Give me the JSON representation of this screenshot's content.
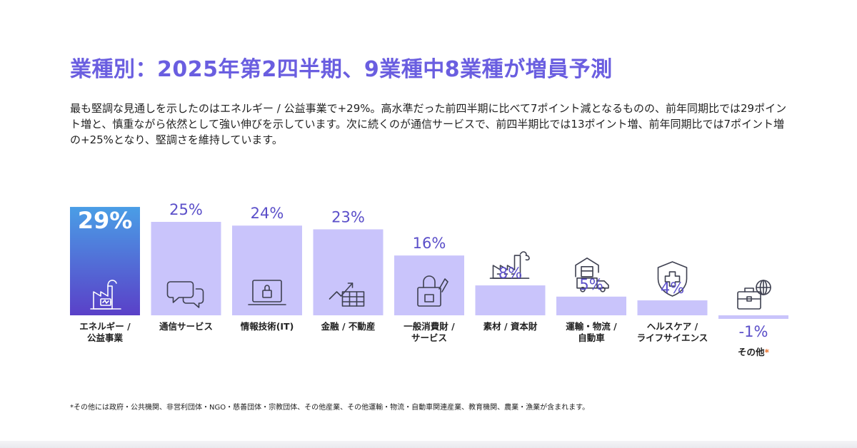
{
  "title": "業種別：2025年第2四半期、9業種中8業種が増員予測",
  "intro": "最も堅調な見通しを示したのはエネルギー / 公益事業で+29%。高水準だった前四半期に比べて7ポイント減となるものの、前年同期比では29ポイント増と、慎重ながら依然として強い伸びを示しています。次に続くのが通信サービスで、前四半期比では13ポイント増、前年同期比では7ポイント増の+25%となり、堅調さを維持しています。",
  "footnote": "*その他には政府・公共機関、非営利団体・NGO・慈善団体・宗教団体、その他産業、その他運輸・物流・自動車関連産業、教育機関、農業・漁業が含まれます。",
  "chart_data": {
    "type": "bar",
    "unit": "%",
    "categories": [
      "エネルギー / 公益事業",
      "通信サービス",
      "情報技術(IT)",
      "金融 / 不動産",
      "一般消費財 / サービス",
      "素材 / 資本財",
      "運輸・物流 / 自動車",
      "ヘルスケア / ライフサイエンス",
      "その他*"
    ],
    "category_lines": [
      [
        "エネルギー /",
        "公益事業"
      ],
      [
        "通信サービス"
      ],
      [
        "情報技術(IT)"
      ],
      [
        "金融 / 不動産"
      ],
      [
        "一般消費財 /",
        "サービス"
      ],
      [
        "素材 / 資本財"
      ],
      [
        "運輸・物流 /",
        "自動車"
      ],
      [
        "ヘルスケア /",
        "ライフサイエンス"
      ],
      [
        "その他*"
      ]
    ],
    "values": [
      29,
      25,
      24,
      23,
      16,
      8,
      5,
      4,
      -1
    ],
    "value_labels": [
      "29%",
      "25%",
      "24%",
      "23%",
      "16%",
      "8%",
      "5%",
      "4%",
      "-1%"
    ],
    "icons": [
      "factory-battery-icon",
      "chat-bubbles-icon",
      "laptop-lock-icon",
      "growth-chart-icon",
      "shopping-bag-icon",
      "factory-icon",
      "truck-icon",
      "medical-shield-icon",
      "briefcase-globe-icon"
    ],
    "highlight_index": 0,
    "colors": {
      "bar": "#c9c4fb",
      "highlight_top": "#4a9ee6",
      "highlight_bottom": "#5a40c8",
      "value_label": "#5b4fc9",
      "icon": "#3e4050",
      "asterisk": "#e8712d"
    }
  }
}
